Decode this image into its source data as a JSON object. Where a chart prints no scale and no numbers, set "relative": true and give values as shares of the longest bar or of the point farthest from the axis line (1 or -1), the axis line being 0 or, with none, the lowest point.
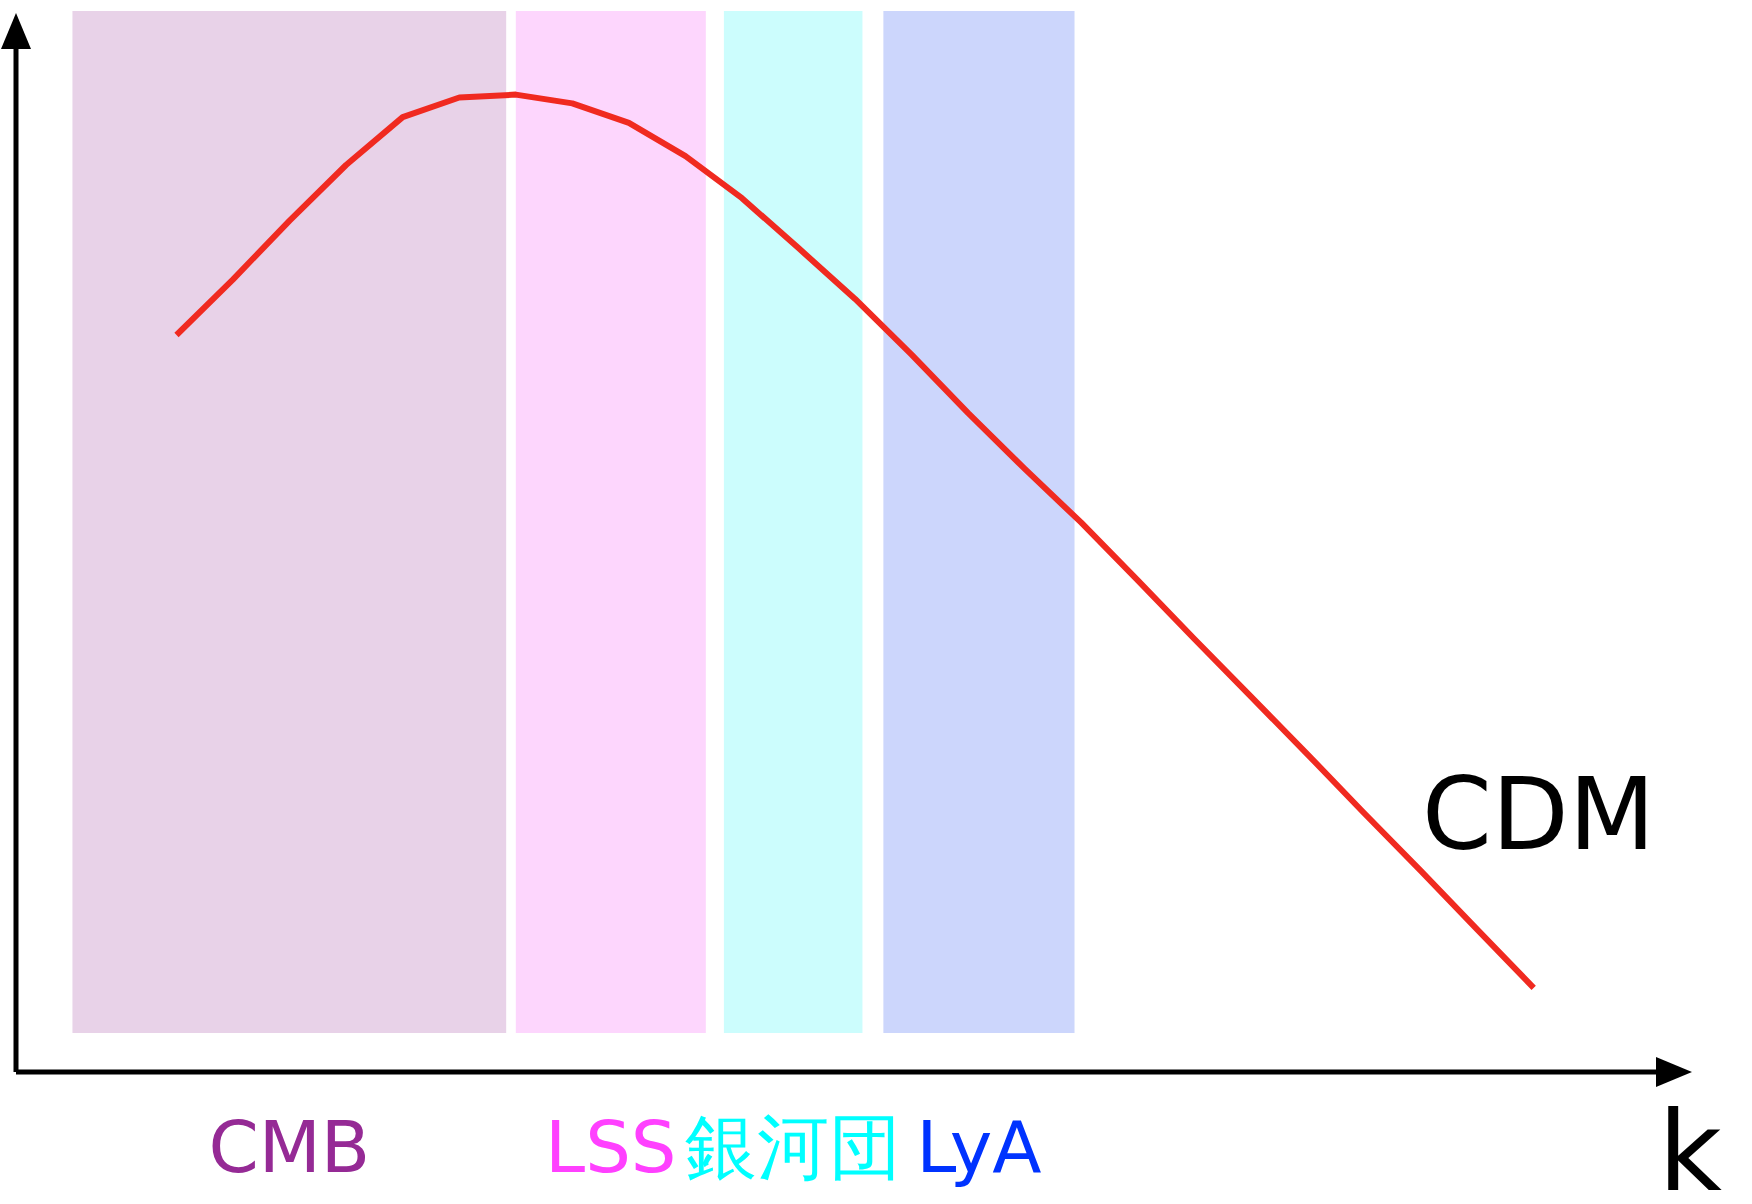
{
  "chart_data": {
    "type": "line",
    "relative": true,
    "xlabel": "k",
    "categories": [
      null,
      null,
      null,
      null,
      null,
      null,
      null,
      null,
      null,
      null,
      null,
      null,
      null,
      null,
      null,
      null,
      null,
      null,
      null,
      null,
      null,
      null,
      null,
      null,
      null
    ],
    "series": [
      {
        "name": "CDM",
        "color": "#f02a20",
        "values": [
          0.754,
          0.811,
          0.871,
          0.928,
          0.977,
          0.997,
          1.0,
          0.991,
          0.971,
          0.937,
          0.894,
          0.843,
          0.791,
          0.734,
          0.674,
          0.617,
          0.562,
          0.503,
          0.443,
          0.384,
          0.325,
          0.265,
          0.206,
          0.146,
          0.086
        ]
      }
    ],
    "annotations": [
      "CMB",
      "LSS",
      "銀河団",
      "LyA"
    ]
  }
}
